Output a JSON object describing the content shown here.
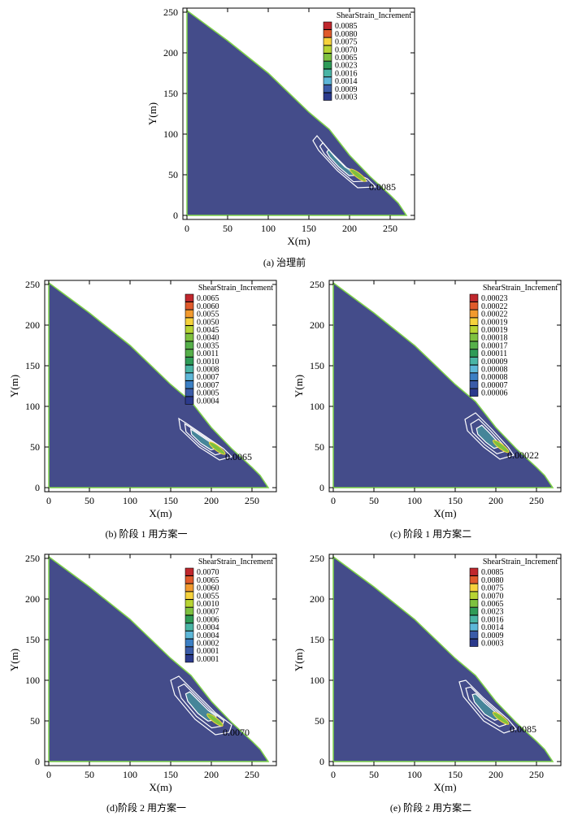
{
  "colors": {
    "fill": "#444C8A",
    "outline": "#7FD34A",
    "contour": "#FFFFFF",
    "levels": [
      "#C0272D",
      "#E05A2B",
      "#F29A2E",
      "#F6D23C",
      "#B7D433",
      "#7EC13F",
      "#56B04A",
      "#2E9B57",
      "#49B5A5",
      "#5DB7D8",
      "#3B7FC4",
      "#3A5BA8",
      "#2B3A8C"
    ]
  },
  "panels": [
    {
      "id": "a",
      "caption": "(a) 治理前",
      "xlabel": "X(m)",
      "ylabel": "Y(m)",
      "legend_title": "ShearStrain_Increment",
      "legend_values": [
        "0.0085",
        "0.0080",
        "0.0075",
        "0.0070",
        "0.0065",
        "0.0023",
        "0.0016",
        "0.0014",
        "0.0009",
        "0.0003"
      ],
      "annotation": "0.0085",
      "xticks": [
        "0",
        "50",
        "100",
        "150",
        "200",
        "250"
      ],
      "yticks": [
        "0",
        "50",
        "100",
        "150",
        "200",
        "250"
      ]
    },
    {
      "id": "b",
      "caption": "(b) 阶段 1 用方案一",
      "xlabel": "X(m)",
      "ylabel": "Y(m)",
      "legend_title": "ShearStrain_Increment",
      "legend_values": [
        "0.0065",
        "0.0060",
        "0.0055",
        "0.0050",
        "0.0045",
        "0.0040",
        "0.0035",
        "0.0011",
        "0.0010",
        "0.0008",
        "0.0007",
        "0.0007",
        "0.0005",
        "0.0004"
      ],
      "annotation": "0.0065",
      "xticks": [
        "0",
        "50",
        "100",
        "150",
        "200",
        "250"
      ],
      "yticks": [
        "0",
        "50",
        "100",
        "150",
        "200",
        "250"
      ]
    },
    {
      "id": "c",
      "caption": "(c) 阶段 1 用方案二",
      "xlabel": "X(m)",
      "ylabel": "Y(m)",
      "legend_title": "ShearStrain_Increment",
      "legend_values": [
        "0.00023",
        "0.00022",
        "0.00022",
        "0.00019",
        "0.00019",
        "0.00018",
        "0.00017",
        "0.00011",
        "0.00009",
        "0.00008",
        "0.00008",
        "0.00007",
        "0.00006"
      ],
      "annotation": "0.00022",
      "xticks": [
        "0",
        "50",
        "100",
        "150",
        "200",
        "250"
      ],
      "yticks": [
        "0",
        "50",
        "100",
        "150",
        "200",
        "250"
      ]
    },
    {
      "id": "d",
      "caption": "(d)阶段 2 用方案一",
      "xlabel": "X(m)",
      "ylabel": "Y(m)",
      "legend_title": "ShearStrain_Increment",
      "legend_values": [
        "0.0070",
        "0.0065",
        "0.0060",
        "0.0055",
        "0.0010",
        "0.0007",
        "0.0006",
        "0.0004",
        "0.0004",
        "0.0002",
        "0.0001",
        "0.0001"
      ],
      "annotation": "0.0070",
      "xticks": [
        "0",
        "50",
        "100",
        "150",
        "200",
        "250"
      ],
      "yticks": [
        "0",
        "50",
        "100",
        "150",
        "200",
        "250"
      ]
    },
    {
      "id": "e",
      "caption": "(e) 阶段 2 用方案二",
      "xlabel": "X(m)",
      "ylabel": "Y(m)",
      "legend_title": "ShearStrain_Increment",
      "legend_values": [
        "0.0085",
        "0.0080",
        "0.0075",
        "0.0070",
        "0.0065",
        "0.0023",
        "0.0016",
        "0.0014",
        "0.0009",
        "0.0003"
      ],
      "annotation": "0.0085",
      "xticks": [
        "0",
        "50",
        "100",
        "150",
        "200",
        "250"
      ],
      "yticks": [
        "0",
        "50",
        "100",
        "150",
        "200",
        "250"
      ]
    }
  ],
  "chart_data": [
    {
      "type": "heatmap",
      "panel": "a",
      "x_range": [
        -5,
        280
      ],
      "y_range": [
        -5,
        255
      ],
      "slope_profile_x": [
        0,
        0,
        50,
        100,
        150,
        175,
        200,
        225,
        250,
        260,
        270,
        0
      ],
      "slope_profile_y": [
        0,
        252,
        215,
        175,
        127,
        106,
        74,
        48,
        25,
        15,
        0,
        0
      ],
      "band_x": [
        155,
        160,
        175,
        200,
        222,
        232,
        210,
        185,
        162
      ],
      "band_y": [
        92,
        98,
        80,
        55,
        45,
        35,
        34,
        55,
        80
      ],
      "max_value": 0.0085
    },
    {
      "type": "heatmap",
      "panel": "b",
      "x_range": [
        -5,
        280
      ],
      "y_range": [
        -5,
        255
      ],
      "slope_profile_x": [
        0,
        0,
        50,
        100,
        150,
        175,
        200,
        225,
        250,
        260,
        270,
        0
      ],
      "slope_profile_y": [
        0,
        252,
        215,
        175,
        127,
        106,
        74,
        48,
        25,
        15,
        0,
        0
      ],
      "band_x": [
        160,
        168,
        190,
        215,
        225,
        210,
        185,
        162
      ],
      "band_y": [
        85,
        80,
        65,
        48,
        38,
        34,
        50,
        72
      ],
      "max_value": 0.0065
    },
    {
      "type": "heatmap",
      "panel": "c",
      "x_range": [
        -5,
        280
      ],
      "y_range": [
        -5,
        255
      ],
      "slope_profile_x": [
        0,
        0,
        50,
        100,
        150,
        175,
        200,
        225,
        250,
        260,
        270,
        0
      ],
      "slope_profile_y": [
        0,
        252,
        215,
        175,
        127,
        106,
        74,
        48,
        25,
        15,
        0,
        0
      ],
      "band_x": [
        162,
        175,
        195,
        215,
        222,
        205,
        185,
        165
      ],
      "band_y": [
        84,
        92,
        72,
        50,
        40,
        35,
        50,
        70
      ],
      "max_value": 0.00023
    },
    {
      "type": "heatmap",
      "panel": "d",
      "x_range": [
        -5,
        280
      ],
      "y_range": [
        -5,
        255
      ],
      "slope_profile_x": [
        0,
        0,
        50,
        100,
        150,
        175,
        200,
        225,
        250,
        260,
        270,
        0
      ],
      "slope_profile_y": [
        0,
        252,
        215,
        175,
        127,
        106,
        74,
        48,
        25,
        15,
        0,
        0
      ],
      "band_x": [
        150,
        160,
        180,
        205,
        225,
        222,
        205,
        180,
        155
      ],
      "band_y": [
        100,
        105,
        85,
        60,
        45,
        36,
        33,
        52,
        82
      ],
      "max_value": 0.007
    },
    {
      "type": "heatmap",
      "panel": "e",
      "x_range": [
        -5,
        280
      ],
      "y_range": [
        -5,
        255
      ],
      "slope_profile_x": [
        0,
        0,
        50,
        100,
        150,
        175,
        200,
        225,
        250,
        260,
        270,
        0
      ],
      "slope_profile_y": [
        0,
        252,
        215,
        175,
        127,
        106,
        74,
        48,
        25,
        15,
        0,
        0
      ],
      "band_x": [
        155,
        163,
        185,
        215,
        225,
        210,
        185,
        160
      ],
      "band_y": [
        98,
        100,
        78,
        52,
        40,
        35,
        50,
        80
      ],
      "max_value": 0.0085
    }
  ]
}
